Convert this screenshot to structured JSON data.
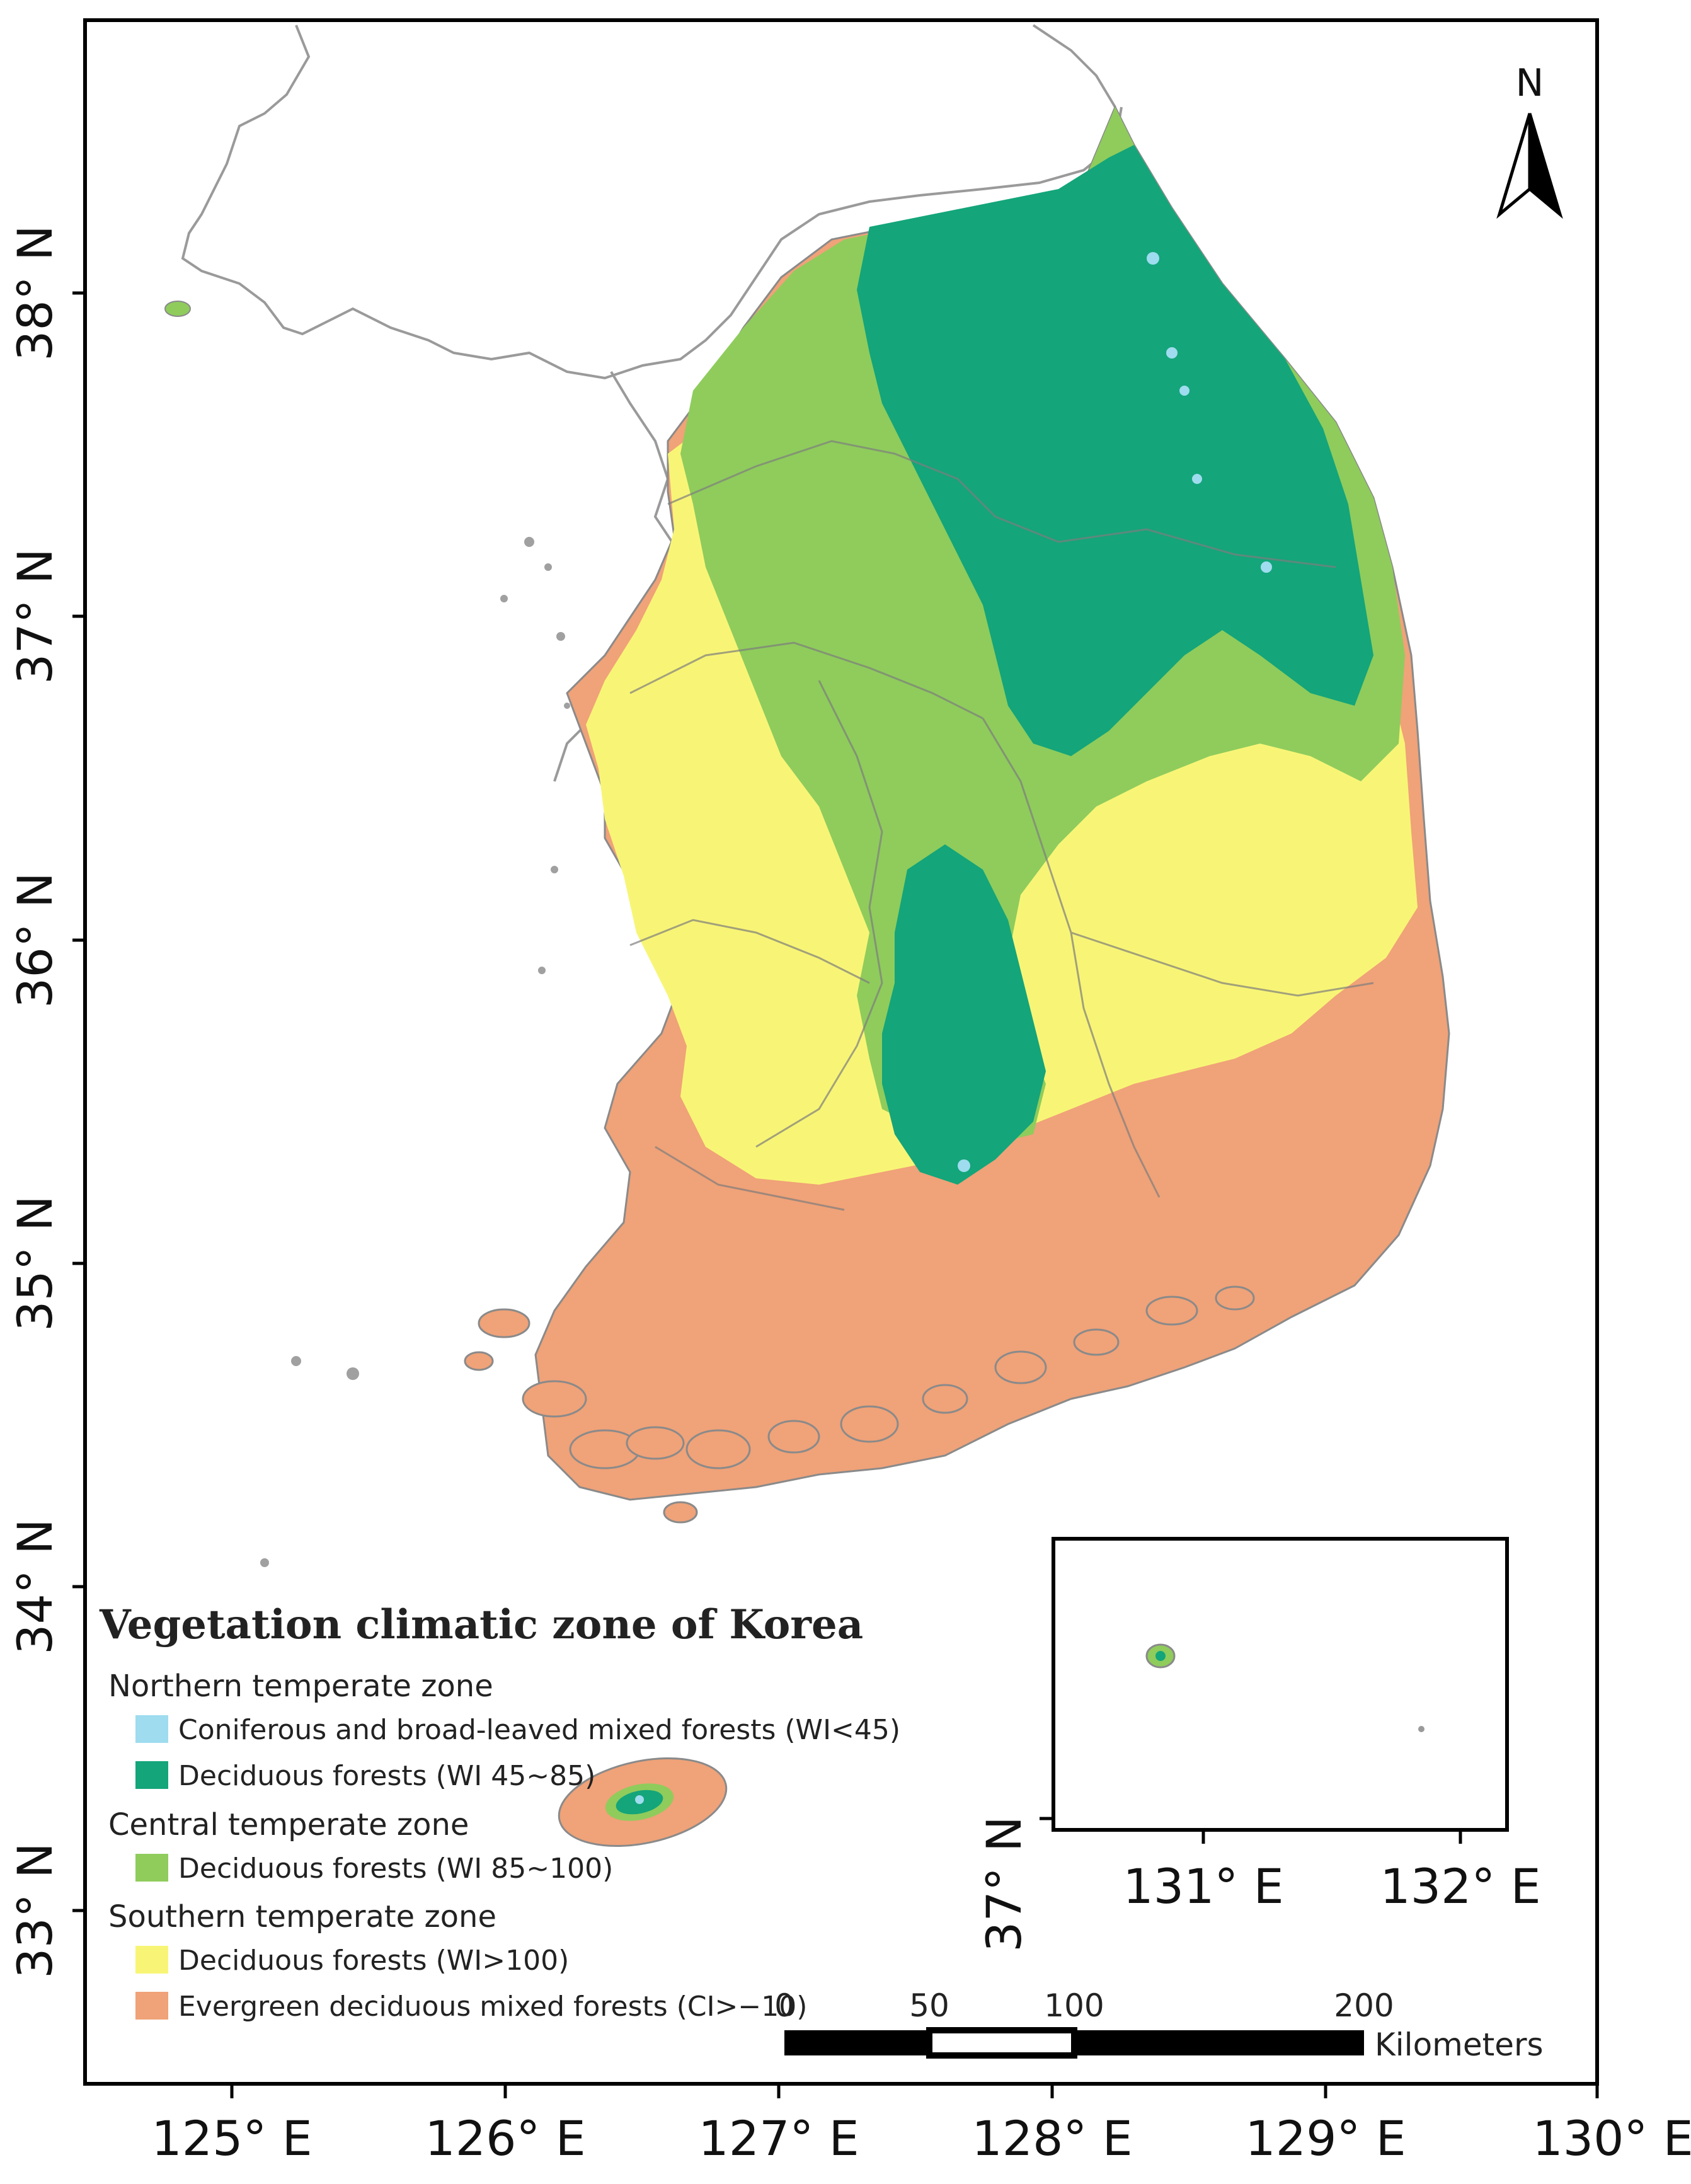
{
  "title": "Vegetation climatic zone of Korea",
  "latitude_ticks": [
    {
      "label": "38° N",
      "value": 38
    },
    {
      "label": "37° N",
      "value": 37
    },
    {
      "label": "36° N",
      "value": 36
    },
    {
      "label": "35° N",
      "value": 35
    },
    {
      "label": "34° N",
      "value": 34
    },
    {
      "label": "33° N",
      "value": 33
    }
  ],
  "longitude_ticks": [
    {
      "label": "125° E",
      "value": 125
    },
    {
      "label": "126° E",
      "value": 126
    },
    {
      "label": "127° E",
      "value": 127
    },
    {
      "label": "128° E",
      "value": 128
    },
    {
      "label": "129° E",
      "value": 129
    },
    {
      "label": "130° E",
      "value": 130
    }
  ],
  "north_arrow": {
    "label": "N",
    "icon": "north-arrow-icon"
  },
  "legend": {
    "zones": [
      {
        "name": "Northern temperate zone",
        "items": [
          {
            "label": "Coniferous and broad-leaved mixed forests (WI<45)",
            "color": "#9fdcef"
          },
          {
            "label": "Deciduous forests (WI 45~85)",
            "color": "#14a57a"
          }
        ]
      },
      {
        "name": "Central temperate zone",
        "items": [
          {
            "label": "Deciduous forests (WI 85~100)",
            "color": "#8fcc5c"
          }
        ]
      },
      {
        "name": "Southern temperate zone",
        "items": [
          {
            "label": "Deciduous forests (WI>100)",
            "color": "#f8f576"
          },
          {
            "label": "Evergreen deciduous mixed forests (CI>−10)",
            "color": "#f0a278"
          }
        ]
      }
    ]
  },
  "scale_bar": {
    "ticks": [
      "0",
      "50",
      "100",
      "200"
    ],
    "unit": "Kilometers"
  },
  "inset": {
    "lat_label": "37° N",
    "lon_labels": [
      "131° E",
      "132° E"
    ]
  },
  "colors": {
    "north_boundary": "#9a9a9a",
    "province_lines": "#7d7d7d",
    "frame": "#000000"
  }
}
